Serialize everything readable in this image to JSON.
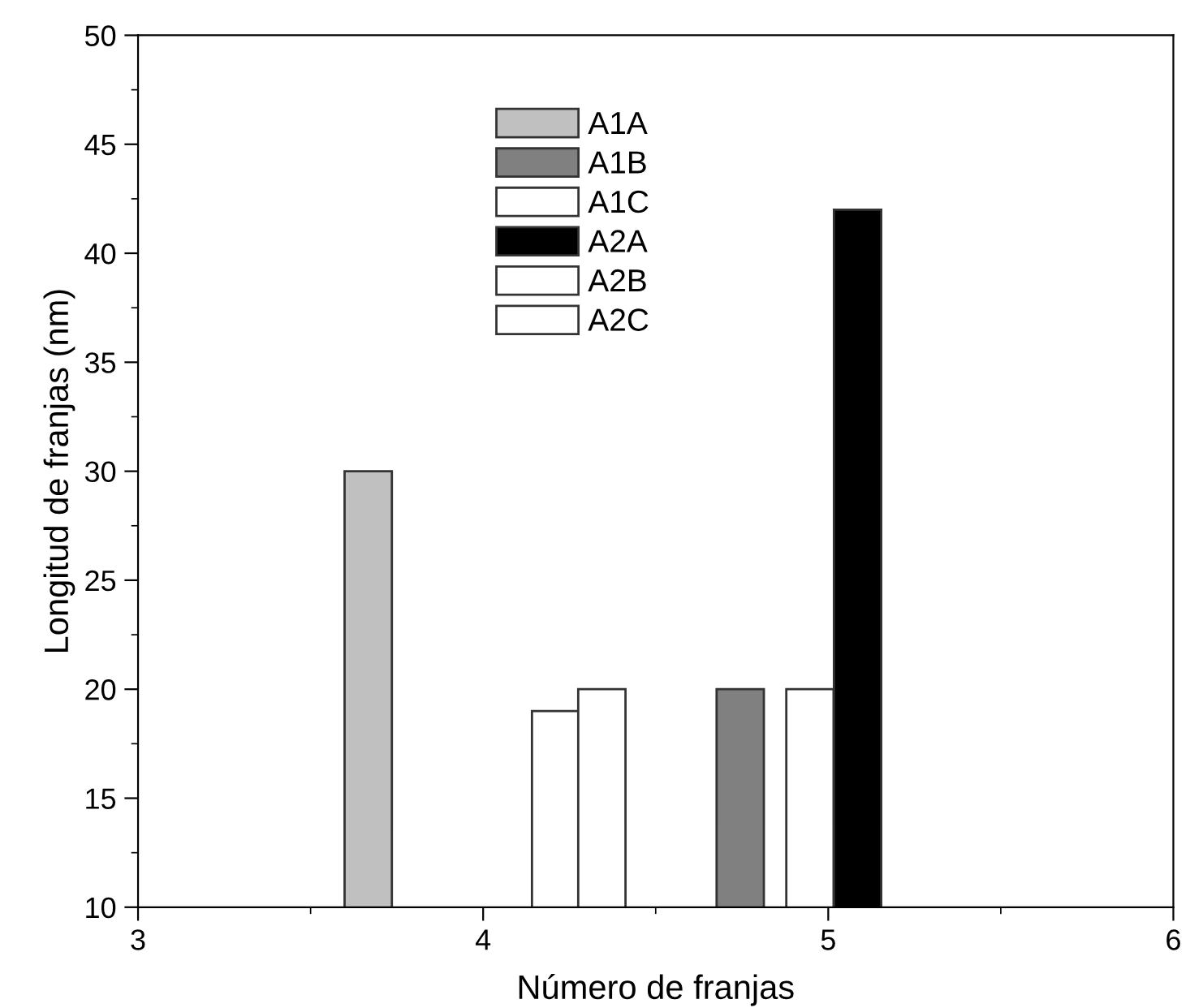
{
  "chart_data": {
    "type": "bar",
    "xlabel": "Número de franjas",
    "ylabel": "Longitud de franjas (nm)",
    "xlim": [
      3,
      6
    ],
    "xticks": [
      3,
      4,
      5,
      6
    ],
    "ylim": [
      10,
      50
    ],
    "yticks": [
      10,
      15,
      20,
      25,
      30,
      35,
      40,
      45,
      50
    ],
    "legend": "top",
    "grid": false,
    "series": [
      {
        "name": "A1A",
        "color": "#c0c0c0",
        "x": [
          3.667
        ],
        "values": [
          30
        ]
      },
      {
        "name": "A1B",
        "color": "#808080",
        "x": [
          4.745
        ],
        "values": [
          20
        ]
      },
      {
        "name": "A1C",
        "color": "#ffffff",
        "x": [
          4.947
        ],
        "values": [
          20
        ]
      },
      {
        "name": "A2A",
        "color": "#000000",
        "x": [
          5.085
        ],
        "values": [
          42
        ]
      },
      {
        "name": "A2B",
        "color": "#ffffff",
        "x": [
          4.21
        ],
        "values": [
          19
        ]
      },
      {
        "name": "A2C",
        "color": "#ffffff",
        "x": [
          4.344
        ],
        "values": [
          20
        ]
      }
    ]
  }
}
